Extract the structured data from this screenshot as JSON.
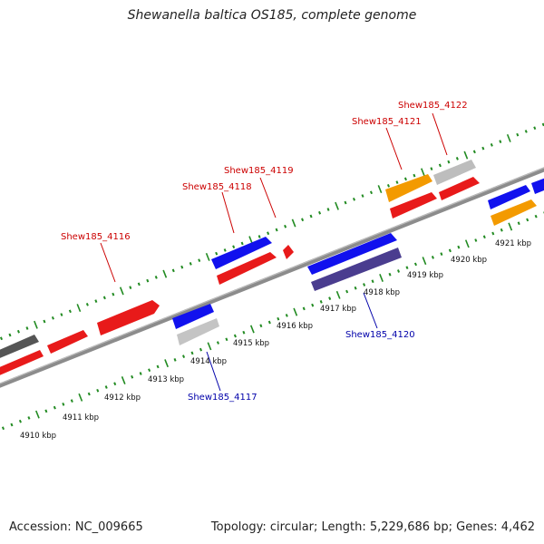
{
  "title": "Shewanella baltica OS185, complete genome",
  "footer": {
    "accession": "Accession: NC_009665",
    "summary": "Topology: circular; Length: 5,229,686 bp; Genes: 4,462"
  },
  "colors": {
    "forward_gene": "#ee1111",
    "reverse_gene": "#1111ee",
    "orange_gene": "#f59300",
    "grey_gene": "#bbbbbb",
    "dark_grey_gene": "#666666",
    "purple_gene": "#554499",
    "backbone": "#888888",
    "tick": "#228b22",
    "label_forward": "#cc0000",
    "label_reverse": "#0000aa"
  },
  "axis_ticks": [
    {
      "label": "4910 kbp"
    },
    {
      "label": "4911 kbp"
    },
    {
      "label": "4912 kbp"
    },
    {
      "label": "4913 kbp"
    },
    {
      "label": "4914 kbp"
    },
    {
      "label": "4915 kbp"
    },
    {
      "label": "4916 kbp"
    },
    {
      "label": "4917 kbp"
    },
    {
      "label": "4918 kbp"
    },
    {
      "label": "4919 kbp"
    },
    {
      "label": "4920 kbp"
    },
    {
      "label": "4921 kbp"
    }
  ],
  "gene_labels": [
    {
      "text": "Shew185_4116",
      "strand": "forward"
    },
    {
      "text": "Shew185_4118",
      "strand": "forward"
    },
    {
      "text": "Shew185_4119",
      "strand": "forward"
    },
    {
      "text": "Shew185_4121",
      "strand": "forward"
    },
    {
      "text": "Shew185_4122",
      "strand": "forward"
    },
    {
      "text": "Shew185_4117",
      "strand": "reverse"
    },
    {
      "text": "Shew185_4120",
      "strand": "reverse"
    }
  ]
}
